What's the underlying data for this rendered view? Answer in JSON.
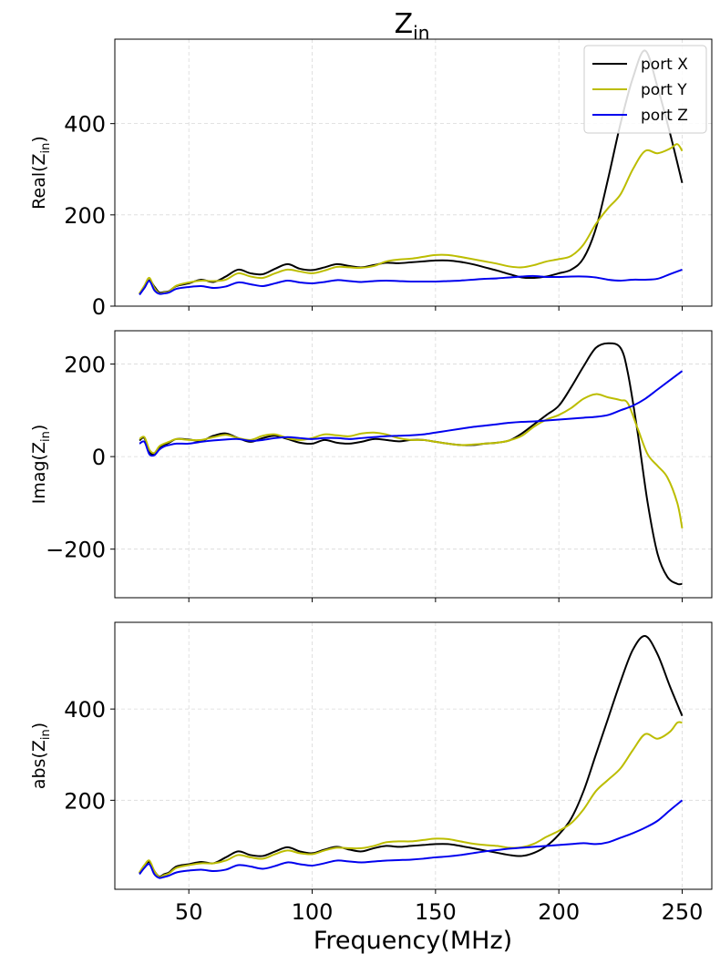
{
  "title_main": "Z",
  "title_sub": "in",
  "xlabel": "Frequency(MHz)",
  "chart_data": [
    {
      "type": "line",
      "ylabel_main": "Real(Z",
      "ylabel_sub": "in",
      "ylabel_close": ")",
      "xlim": [
        20,
        262
      ],
      "ylim": [
        0,
        585
      ],
      "xticks": [
        50,
        100,
        150,
        200,
        250
      ],
      "yticks": [
        0,
        200,
        400
      ],
      "ytick_labels": [
        "0",
        "200",
        "400"
      ],
      "grid": true,
      "legend": "top-right",
      "series": [
        {
          "name": "port X",
          "color": "#000000",
          "x": [
            30,
            32,
            34,
            36,
            38,
            40,
            42,
            45,
            50,
            55,
            60,
            65,
            70,
            75,
            80,
            85,
            90,
            95,
            100,
            105,
            110,
            115,
            120,
            125,
            130,
            135,
            140,
            145,
            150,
            155,
            160,
            165,
            170,
            175,
            180,
            185,
            190,
            195,
            200,
            205,
            210,
            215,
            220,
            225,
            230,
            235,
            240,
            245,
            250
          ],
          "y": [
            27,
            40,
            57,
            43,
            30,
            31,
            33,
            44,
            50,
            58,
            53,
            65,
            80,
            72,
            70,
            82,
            92,
            82,
            79,
            85,
            92,
            88,
            85,
            90,
            95,
            94,
            96,
            98,
            100,
            100,
            97,
            92,
            85,
            78,
            70,
            63,
            62,
            65,
            72,
            80,
            105,
            170,
            280,
            400,
            500,
            560,
            480,
            380,
            270
          ]
        },
        {
          "name": "port Y",
          "color": "#bcbd00",
          "x": [
            30,
            32,
            34,
            36,
            38,
            40,
            42,
            45,
            50,
            55,
            60,
            65,
            70,
            75,
            80,
            85,
            90,
            95,
            100,
            105,
            110,
            115,
            120,
            125,
            130,
            135,
            140,
            145,
            150,
            155,
            160,
            165,
            170,
            175,
            180,
            185,
            190,
            195,
            200,
            205,
            210,
            215,
            220,
            225,
            230,
            235,
            240,
            245,
            248,
            250
          ],
          "y": [
            28,
            45,
            62,
            40,
            28,
            30,
            32,
            45,
            52,
            56,
            55,
            58,
            72,
            65,
            62,
            72,
            80,
            76,
            72,
            78,
            86,
            85,
            84,
            88,
            98,
            102,
            104,
            108,
            112,
            112,
            108,
            103,
            98,
            93,
            87,
            85,
            90,
            98,
            103,
            110,
            135,
            180,
            215,
            245,
            300,
            340,
            335,
            345,
            355,
            340
          ]
        },
        {
          "name": "port Z",
          "color": "#0000ee",
          "x": [
            30,
            32,
            34,
            36,
            38,
            40,
            42,
            45,
            50,
            55,
            60,
            65,
            70,
            75,
            80,
            85,
            90,
            95,
            100,
            105,
            110,
            115,
            120,
            125,
            130,
            135,
            140,
            145,
            150,
            155,
            160,
            165,
            170,
            175,
            180,
            185,
            190,
            195,
            200,
            205,
            210,
            215,
            220,
            225,
            230,
            235,
            240,
            245,
            250
          ],
          "y": [
            25,
            40,
            55,
            35,
            27,
            28,
            30,
            38,
            42,
            44,
            40,
            43,
            52,
            48,
            44,
            50,
            56,
            52,
            50,
            53,
            57,
            55,
            53,
            55,
            56,
            55,
            54,
            54,
            54,
            55,
            56,
            58,
            60,
            61,
            63,
            65,
            66,
            64,
            64,
            65,
            65,
            63,
            58,
            56,
            58,
            58,
            60,
            70,
            80
          ]
        }
      ]
    },
    {
      "type": "line",
      "ylabel_main": "Imag(Z",
      "ylabel_sub": "in",
      "ylabel_close": ")",
      "xlim": [
        20,
        262
      ],
      "ylim": [
        -305,
        272
      ],
      "xticks": [
        50,
        100,
        150,
        200,
        250
      ],
      "yticks": [
        -200,
        0,
        200
      ],
      "ytick_labels": [
        "−200",
        "0",
        "200"
      ],
      "grid": true,
      "series": [
        {
          "name": "port X",
          "color": "#000000",
          "x": [
            30,
            32,
            34,
            36,
            38,
            40,
            42,
            45,
            50,
            55,
            60,
            65,
            70,
            75,
            80,
            85,
            90,
            95,
            100,
            105,
            110,
            115,
            120,
            125,
            130,
            135,
            140,
            145,
            150,
            155,
            160,
            165,
            170,
            175,
            180,
            185,
            190,
            195,
            200,
            205,
            210,
            215,
            220,
            225,
            228,
            232,
            236,
            240,
            244,
            248,
            250
          ],
          "y": [
            35,
            40,
            10,
            5,
            20,
            25,
            30,
            38,
            37,
            34,
            45,
            50,
            40,
            32,
            40,
            45,
            38,
            30,
            28,
            36,
            30,
            28,
            32,
            38,
            36,
            33,
            36,
            36,
            32,
            28,
            25,
            25,
            28,
            30,
            35,
            50,
            70,
            90,
            110,
            150,
            195,
            235,
            245,
            235,
            180,
            50,
            -100,
            -210,
            -260,
            -275,
            -275
          ]
        },
        {
          "name": "port Y",
          "color": "#bcbd00",
          "x": [
            30,
            32,
            34,
            36,
            38,
            40,
            42,
            45,
            50,
            55,
            60,
            65,
            70,
            75,
            80,
            85,
            90,
            95,
            100,
            105,
            110,
            115,
            120,
            125,
            130,
            135,
            140,
            145,
            150,
            155,
            160,
            165,
            170,
            175,
            180,
            185,
            190,
            195,
            200,
            205,
            210,
            215,
            220,
            225,
            228,
            232,
            236,
            240,
            244,
            248,
            250
          ],
          "y": [
            38,
            42,
            15,
            8,
            22,
            28,
            32,
            38,
            36,
            36,
            42,
            47,
            40,
            36,
            45,
            48,
            40,
            36,
            40,
            48,
            46,
            44,
            50,
            52,
            48,
            40,
            36,
            36,
            32,
            28,
            25,
            26,
            28,
            30,
            35,
            45,
            65,
            80,
            90,
            105,
            125,
            135,
            128,
            122,
            115,
            60,
            5,
            -20,
            -45,
            -100,
            -155
          ]
        },
        {
          "name": "port Z",
          "color": "#0000ee",
          "x": [
            30,
            32,
            34,
            36,
            38,
            40,
            42,
            45,
            50,
            55,
            60,
            65,
            70,
            75,
            80,
            85,
            90,
            95,
            100,
            105,
            110,
            115,
            120,
            125,
            130,
            135,
            140,
            145,
            150,
            155,
            160,
            165,
            170,
            175,
            180,
            185,
            190,
            195,
            200,
            205,
            210,
            215,
            220,
            225,
            230,
            235,
            240,
            245,
            250
          ],
          "y": [
            28,
            32,
            5,
            3,
            15,
            22,
            25,
            28,
            28,
            32,
            35,
            37,
            38,
            34,
            36,
            40,
            42,
            40,
            38,
            40,
            40,
            38,
            40,
            42,
            44,
            45,
            46,
            48,
            52,
            56,
            60,
            64,
            67,
            70,
            73,
            75,
            76,
            78,
            80,
            82,
            84,
            86,
            90,
            100,
            110,
            125,
            145,
            165,
            185
          ]
        }
      ]
    },
    {
      "type": "line",
      "ylabel_main": "abs(Z",
      "ylabel_sub": "in",
      "ylabel_close": ")",
      "xlim": [
        20,
        262
      ],
      "ylim": [
        5,
        590
      ],
      "xticks": [
        50,
        100,
        150,
        200,
        250
      ],
      "xtick_labels": [
        "50",
        "100",
        "150",
        "200",
        "250"
      ],
      "yticks": [
        200,
        400
      ],
      "ytick_labels": [
        "200",
        "400"
      ],
      "grid": true,
      "series": [
        {
          "name": "port X",
          "color": "#000000",
          "x": [
            30,
            32,
            34,
            36,
            38,
            40,
            42,
            45,
            50,
            55,
            60,
            65,
            70,
            75,
            80,
            85,
            90,
            95,
            100,
            105,
            110,
            115,
            120,
            125,
            130,
            135,
            140,
            145,
            150,
            155,
            160,
            165,
            170,
            175,
            180,
            185,
            190,
            195,
            200,
            205,
            210,
            215,
            220,
            225,
            230,
            235,
            240,
            245,
            250
          ],
          "y": [
            40,
            55,
            65,
            45,
            33,
            38,
            42,
            55,
            60,
            65,
            62,
            75,
            88,
            80,
            78,
            88,
            97,
            88,
            84,
            92,
            98,
            92,
            88,
            95,
            100,
            98,
            100,
            102,
            104,
            104,
            100,
            95,
            90,
            85,
            80,
            78,
            85,
            100,
            125,
            160,
            220,
            300,
            380,
            460,
            530,
            560,
            520,
            450,
            385
          ]
        },
        {
          "name": "port Y",
          "color": "#bcbd00",
          "x": [
            30,
            32,
            34,
            36,
            38,
            40,
            42,
            45,
            50,
            55,
            60,
            65,
            70,
            75,
            80,
            85,
            90,
            95,
            100,
            105,
            110,
            115,
            120,
            125,
            130,
            135,
            140,
            145,
            150,
            155,
            160,
            165,
            170,
            175,
            180,
            185,
            190,
            195,
            200,
            205,
            210,
            215,
            220,
            225,
            230,
            235,
            240,
            245,
            248,
            250
          ],
          "y": [
            42,
            58,
            68,
            45,
            32,
            36,
            40,
            52,
            58,
            62,
            62,
            68,
            80,
            75,
            72,
            82,
            90,
            84,
            82,
            90,
            96,
            95,
            95,
            100,
            108,
            110,
            110,
            113,
            116,
            115,
            110,
            105,
            102,
            100,
            96,
            97,
            105,
            120,
            133,
            150,
            180,
            220,
            245,
            270,
            310,
            345,
            335,
            350,
            370,
            370
          ]
        },
        {
          "name": "port Z",
          "color": "#0000ee",
          "x": [
            30,
            32,
            34,
            36,
            38,
            40,
            42,
            45,
            50,
            55,
            60,
            65,
            70,
            75,
            80,
            85,
            90,
            95,
            100,
            105,
            110,
            115,
            120,
            125,
            130,
            135,
            140,
            145,
            150,
            155,
            160,
            165,
            170,
            175,
            180,
            185,
            190,
            195,
            200,
            205,
            210,
            215,
            220,
            225,
            230,
            235,
            240,
            245,
            250
          ],
          "y": [
            38,
            52,
            60,
            38,
            30,
            32,
            35,
            42,
            46,
            48,
            45,
            48,
            58,
            55,
            50,
            56,
            64,
            60,
            57,
            62,
            68,
            66,
            64,
            66,
            68,
            69,
            70,
            72,
            75,
            77,
            80,
            84,
            88,
            91,
            94,
            96,
            98,
            100,
            102,
            104,
            106,
            104,
            108,
            118,
            128,
            140,
            155,
            178,
            200
          ]
        }
      ]
    }
  ]
}
